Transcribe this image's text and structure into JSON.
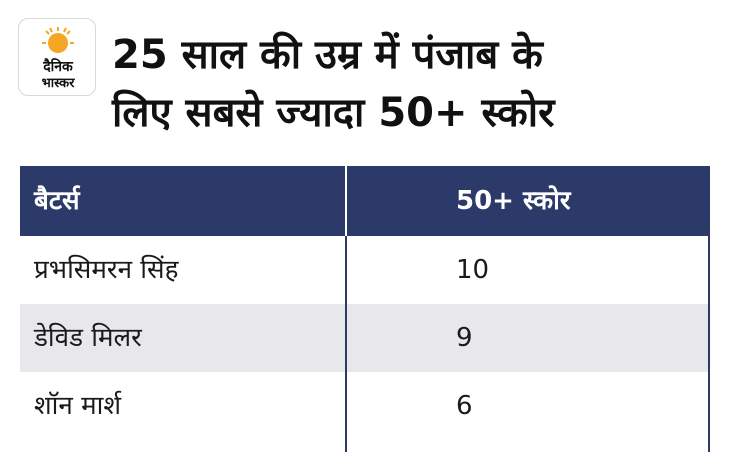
{
  "logo": {
    "line1": "दैनिक",
    "line2": "भास्कर",
    "sun_color": "#f5a623"
  },
  "title": {
    "line1": "25 साल की उम्र में पंजाब के",
    "line2": "लिए सबसे ज्यादा 50+ स्कोर"
  },
  "chart_data": {
    "type": "table",
    "columns": [
      "बैटर्स",
      "50+ स्कोर"
    ],
    "rows": [
      {
        "name": "प्रभसिमरन सिंह",
        "value": "10"
      },
      {
        "name": "डेविड मिलर",
        "value": "9"
      },
      {
        "name": "शॉन मार्श",
        "value": "6"
      }
    ]
  },
  "colors": {
    "header_bg": "#2c3a69",
    "alt_row_bg": "#e8e8ec"
  }
}
